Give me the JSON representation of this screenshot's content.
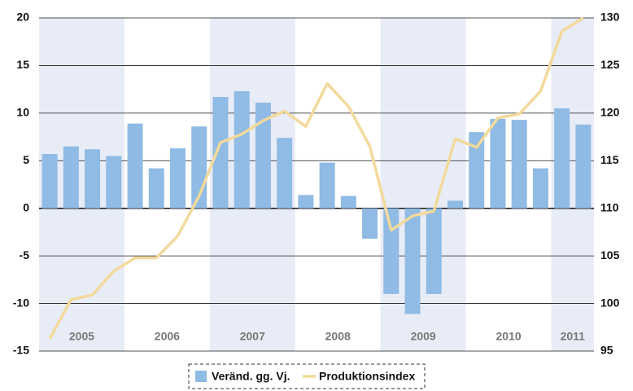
{
  "chart_data": {
    "type": "bar_line",
    "years": [
      "2005",
      "2006",
      "2007",
      "2008",
      "2009",
      "2010",
      "2011"
    ],
    "series": [
      {
        "name": "Veränd. gg. Vj.",
        "color": "#8fbbe5",
        "type": "bar",
        "axis": "y",
        "values": [
          5.7,
          6.5,
          6.2,
          5.5,
          8.9,
          4.2,
          6.3,
          8.6,
          11.7,
          12.3,
          11.1,
          7.4,
          1.4,
          4.8,
          1.3,
          -3.2,
          -9.0,
          -11.1,
          -9.0,
          0.8,
          8.0,
          9.4,
          9.3,
          4.2,
          10.5,
          8.8
        ]
      },
      {
        "name": "Produktionsindex",
        "color": "#f3d99b",
        "type": "line",
        "axis": "y2",
        "values": [
          96.3,
          100.4,
          100.9,
          103.4,
          104.8,
          104.8,
          107.1,
          111.3,
          116.9,
          117.8,
          119.2,
          120.2,
          118.6,
          123.1,
          120.7,
          116.5,
          107.7,
          109.2,
          109.7,
          117.3,
          116.4,
          119.5,
          119.9,
          122.3,
          128.6,
          130.0
        ]
      }
    ],
    "ylim": [
      -15,
      20
    ],
    "yticks": [
      -15,
      -10,
      -5,
      0,
      5,
      10,
      15,
      20
    ],
    "y2lim": [
      95,
      130
    ],
    "y2ticks": [
      95,
      100,
      105,
      110,
      115,
      120,
      125,
      130
    ],
    "grid": true,
    "band_color": "#e8ecf6"
  }
}
